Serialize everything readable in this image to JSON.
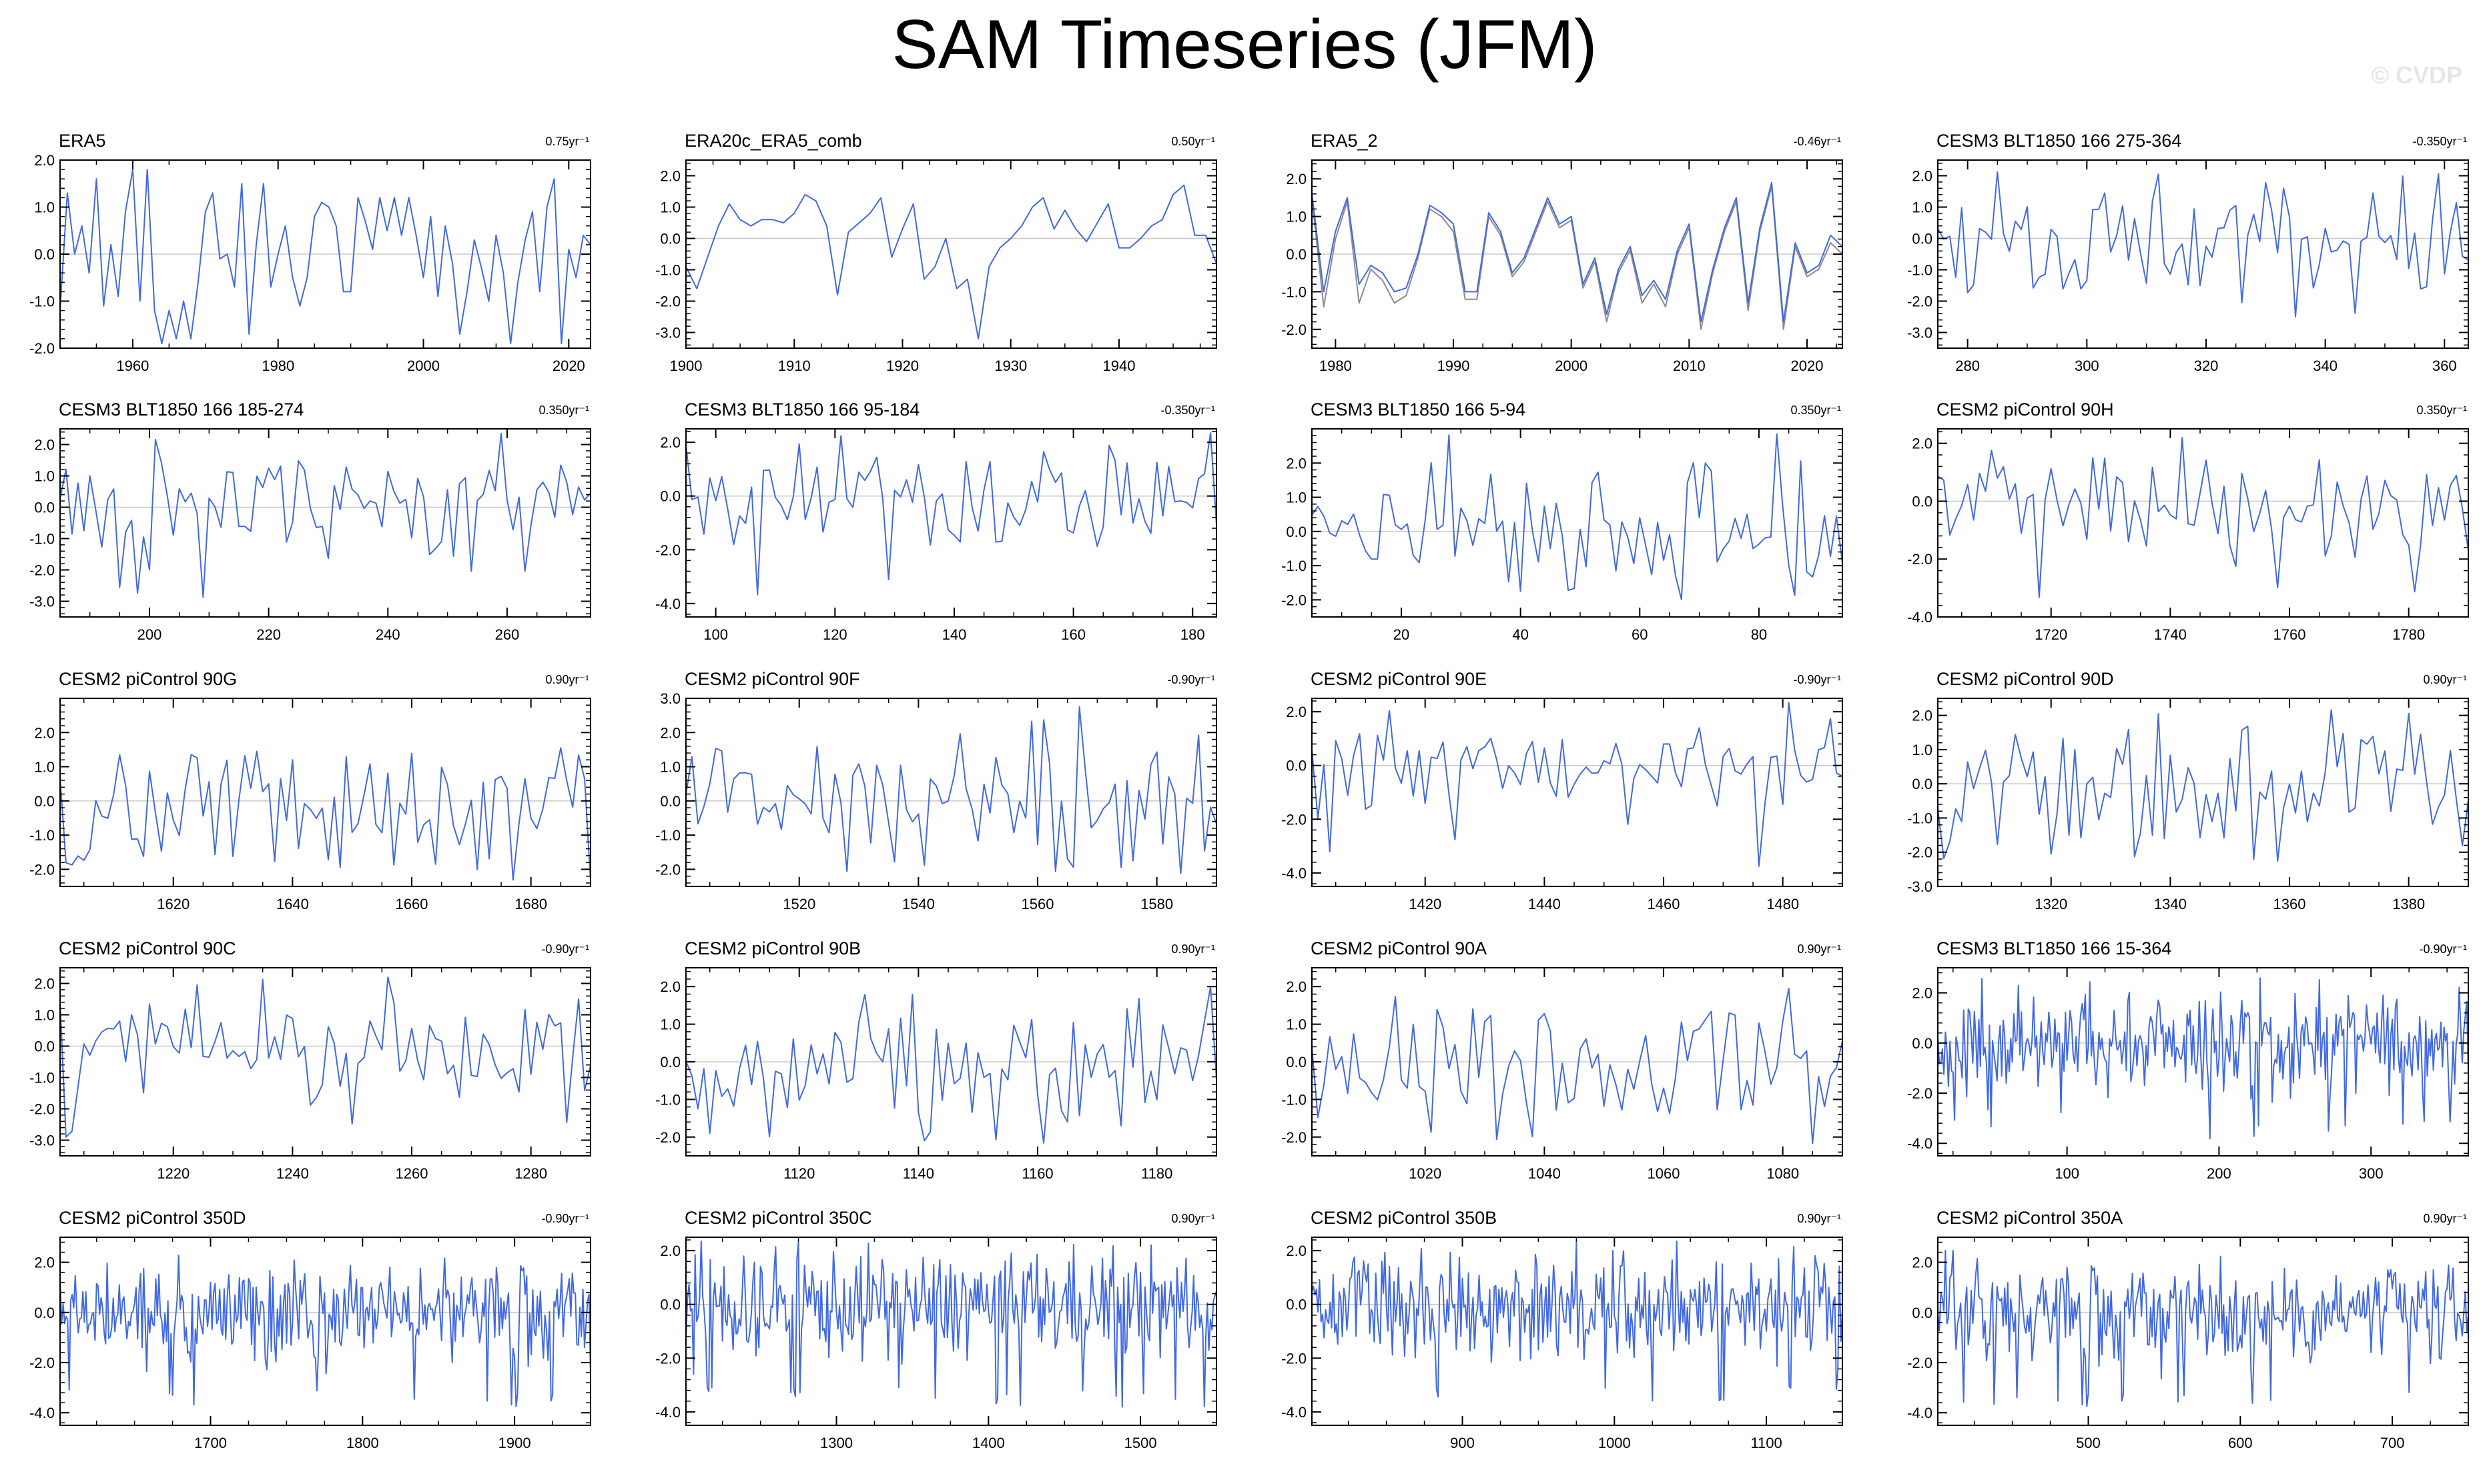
{
  "title": "SAM Timeseries (JFM)",
  "watermark": "© CVDP",
  "colors": {
    "line": "#4169e1",
    "obs_line2": "#8c8c8c",
    "zero_line": "#c8c8c8",
    "axis": "#000000"
  },
  "chart_data": [
    {
      "type": "line",
      "title": "ERA5",
      "trend": "0.75yr⁻¹",
      "xlim": [
        1950,
        2023
      ],
      "ylim": [
        -2,
        2
      ],
      "xticks": [
        1960,
        1980,
        2000,
        2020
      ],
      "yticks": [
        -2,
        -1,
        0,
        1,
        2
      ],
      "x": [
        1950,
        1951,
        1952,
        1953,
        1954,
        1955,
        1956,
        1957,
        1958,
        1959,
        1960,
        1961,
        1962,
        1963,
        1964,
        1965,
        1966,
        1967,
        1968,
        1969,
        1970,
        1971,
        1972,
        1973,
        1974,
        1975,
        1976,
        1977,
        1978,
        1979,
        1980,
        1981,
        1982,
        1983,
        1984,
        1985,
        1986,
        1987,
        1988,
        1989,
        1990,
        1991,
        1992,
        1993,
        1994,
        1995,
        1996,
        1997,
        1998,
        1999,
        2000,
        2001,
        2002,
        2003,
        2004,
        2005,
        2006,
        2007,
        2008,
        2009,
        2010,
        2011,
        2012,
        2013,
        2014,
        2015,
        2016,
        2017,
        2018,
        2019,
        2020,
        2021,
        2022,
        2023
      ],
      "series": [
        {
          "values": [
            -1.2,
            1.3,
            0.0,
            0.6,
            -0.4,
            1.6,
            -1.1,
            0.2,
            -0.9,
            0.9,
            1.8,
            -1.0,
            1.8,
            -1.2,
            -1.9,
            -1.2,
            -1.8,
            -1.0,
            -1.8,
            -0.6,
            0.9,
            1.3,
            -0.1,
            0.0,
            -0.7,
            1.5,
            -1.7,
            0.2,
            1.5,
            -0.7,
            0.0,
            0.6,
            -0.5,
            -1.1,
            -0.5,
            0.8,
            1.1,
            1.0,
            0.6,
            -0.8,
            -0.8,
            1.2,
            0.7,
            0.1,
            1.2,
            0.5,
            1.2,
            0.4,
            1.2,
            0.4,
            -0.5,
            0.8,
            -0.9,
            0.6,
            -0.2,
            -1.7,
            -0.8,
            0.3,
            -0.3,
            -1.0,
            0.4,
            -0.4,
            -1.9,
            -0.6,
            0.3,
            0.9,
            -0.8,
            1.0,
            1.6,
            -1.9,
            0.1,
            -0.5,
            0.4,
            0.2
          ]
        }
      ]
    },
    {
      "type": "line",
      "title": "ERA20c_ERA5_comb",
      "trend": "0.50yr⁻¹",
      "xlim": [
        1900,
        1949
      ],
      "ylim": [
        -3.5,
        2.5
      ],
      "xticks": [
        1900,
        1910,
        1920,
        1930,
        1940
      ],
      "yticks": [
        -3,
        -2,
        -1,
        0,
        1,
        2
      ],
      "x": [
        1900,
        1901,
        1902,
        1903,
        1904,
        1905,
        1906,
        1907,
        1908,
        1909,
        1910,
        1911,
        1912,
        1913,
        1914,
        1915,
        1916,
        1917,
        1918,
        1919,
        1920,
        1921,
        1922,
        1923,
        1924,
        1925,
        1926,
        1927,
        1928,
        1929,
        1930,
        1931,
        1932,
        1933,
        1934,
        1935,
        1936,
        1937,
        1938,
        1939,
        1940,
        1941,
        1942,
        1943,
        1944,
        1945,
        1946,
        1947,
        1948,
        1949
      ],
      "series": [
        {
          "values": [
            -0.9,
            -1.6,
            -0.6,
            0.4,
            1.1,
            0.6,
            0.4,
            0.6,
            0.6,
            0.5,
            0.8,
            1.4,
            1.2,
            0.4,
            -1.8,
            0.2,
            0.5,
            0.8,
            1.3,
            -0.6,
            0.3,
            1.1,
            -1.3,
            -0.9,
            0.0,
            -1.6,
            -1.3,
            -3.2,
            -0.9,
            -0.3,
            0.0,
            0.4,
            1.0,
            1.3,
            0.3,
            0.9,
            0.3,
            -0.1,
            0.5,
            1.1,
            -0.3,
            -0.3,
            0.0,
            0.4,
            0.6,
            1.4,
            1.7,
            0.1,
            0.1,
            -0.8
          ]
        }
      ]
    },
    {
      "type": "line",
      "title": "ERA5_2",
      "trend": "-0.46yr⁻¹",
      "xlim": [
        1978,
        2023
      ],
      "ylim": [
        -2.5,
        2.5
      ],
      "xticks": [
        1980,
        1990,
        2000,
        2010,
        2020
      ],
      "yticks": [
        -2,
        -1,
        0,
        1,
        2
      ],
      "x": [
        1978,
        1979,
        1980,
        1981,
        1982,
        1983,
        1984,
        1985,
        1986,
        1987,
        1988,
        1989,
        1990,
        1991,
        1992,
        1993,
        1994,
        1995,
        1996,
        1997,
        1998,
        1999,
        2000,
        2001,
        2002,
        2003,
        2004,
        2005,
        2006,
        2007,
        2008,
        2009,
        2010,
        2011,
        2012,
        2013,
        2014,
        2015,
        2016,
        2017,
        2018,
        2019,
        2020,
        2021,
        2022,
        2023
      ],
      "series": [
        {
          "values": [
            1.5,
            -1.4,
            0.4,
            1.4,
            -1.3,
            -0.4,
            -0.7,
            -1.3,
            -1.1,
            -0.1,
            1.2,
            1.0,
            0.6,
            -1.2,
            -1.2,
            1.0,
            0.5,
            -0.6,
            -0.2,
            0.6,
            1.4,
            0.7,
            0.9,
            -0.9,
            -0.2,
            -1.8,
            -0.5,
            0.1,
            -1.3,
            -0.8,
            -1.4,
            0.0,
            0.7,
            -2.0,
            -0.5,
            0.6,
            1.4,
            -1.5,
            0.6,
            1.8,
            -2.0,
            0.2,
            -0.6,
            -0.4,
            0.3,
            0.0
          ]
        },
        {
          "values": [
            1.6,
            -1.0,
            0.6,
            1.5,
            -0.8,
            -0.3,
            -0.5,
            -1.0,
            -0.9,
            0.0,
            1.3,
            1.1,
            0.8,
            -1.0,
            -1.0,
            1.1,
            0.6,
            -0.5,
            -0.1,
            0.7,
            1.5,
            0.8,
            1.0,
            -0.8,
            -0.1,
            -1.6,
            -0.4,
            0.2,
            -1.1,
            -0.7,
            -1.2,
            0.1,
            0.8,
            -1.8,
            -0.4,
            0.7,
            1.5,
            -1.3,
            0.7,
            1.9,
            -1.8,
            0.3,
            -0.5,
            -0.3,
            0.5,
            0.2
          ]
        }
      ]
    },
    {
      "type": "line",
      "title": "CESM3 BLT1850 166 275-364",
      "trend": "-0.350yr⁻¹",
      "xlim": [
        275,
        364
      ],
      "ylim": [
        -3.5,
        2.5
      ],
      "xticks": [
        280,
        300,
        320,
        340,
        360
      ],
      "yticks": [
        -3,
        -2,
        -1,
        0,
        1,
        2
      ],
      "seed": 4,
      "n": 90,
      "amp": 1.05
    },
    {
      "type": "line",
      "title": "CESM3 BLT1850 166 185-274",
      "trend": "0.350yr⁻¹",
      "xlim": [
        185,
        274
      ],
      "ylim": [
        -3.5,
        2.5
      ],
      "xticks": [
        200,
        220,
        240,
        260
      ],
      "yticks": [
        -3,
        -2,
        -1,
        0,
        1,
        2
      ],
      "seed": 5,
      "n": 90,
      "amp": 1.0
    },
    {
      "type": "line",
      "title": "CESM3 BLT1850 166 95-184",
      "trend": "-0.350yr⁻¹",
      "xlim": [
        95,
        184
      ],
      "ylim": [
        -4.5,
        2.5
      ],
      "xticks": [
        100,
        120,
        140,
        160,
        180
      ],
      "yticks": [
        -4,
        -2,
        0,
        2
      ],
      "seed": 6,
      "n": 90,
      "amp": 1.05
    },
    {
      "type": "line",
      "title": "CESM3 BLT1850 166 5-94",
      "trend": "0.350yr⁻¹",
      "xlim": [
        5,
        94
      ],
      "ylim": [
        -2.5,
        3.0
      ],
      "xticks": [
        20,
        40,
        60,
        80
      ],
      "yticks": [
        -2,
        -1,
        0,
        1,
        2
      ],
      "seed": 7,
      "n": 90,
      "amp": 1.0
    },
    {
      "type": "line",
      "title": "CESM2 piControl 90H",
      "trend": "0.350yr⁻¹",
      "xlim": [
        1701,
        1790
      ],
      "ylim": [
        -4,
        2.5
      ],
      "xticks": [
        1720,
        1740,
        1760,
        1780
      ],
      "yticks": [
        -4,
        -2,
        0,
        2
      ],
      "seed": 8,
      "n": 90,
      "amp": 1.0
    },
    {
      "type": "line",
      "title": "CESM2 piControl 90G",
      "trend": "0.90yr⁻¹",
      "xlim": [
        1601,
        1690
      ],
      "ylim": [
        -2.5,
        3.0
      ],
      "xticks": [
        1620,
        1640,
        1660,
        1680
      ],
      "yticks": [
        -2,
        -1,
        0,
        1,
        2
      ],
      "seed": 9,
      "n": 90,
      "amp": 1.0
    },
    {
      "type": "line",
      "title": "CESM2 piControl 90F",
      "trend": "-0.90yr⁻¹",
      "xlim": [
        1501,
        1590
      ],
      "ylim": [
        -2.5,
        3.0
      ],
      "xticks": [
        1520,
        1540,
        1560,
        1580
      ],
      "yticks": [
        -2,
        -1,
        0,
        1,
        2,
        3
      ],
      "seed": 10,
      "n": 90,
      "amp": 1.0
    },
    {
      "type": "line",
      "title": "CESM2 piControl 90E",
      "trend": "-0.90yr⁻¹",
      "xlim": [
        1401,
        1490
      ],
      "ylim": [
        -4.5,
        2.5
      ],
      "xticks": [
        1420,
        1440,
        1460,
        1480
      ],
      "yticks": [
        -4,
        -2,
        0,
        2
      ],
      "seed": 11,
      "n": 90,
      "amp": 1.0
    },
    {
      "type": "line",
      "title": "CESM2 piControl 90D",
      "trend": "0.90yr⁻¹",
      "xlim": [
        1301,
        1390
      ],
      "ylim": [
        -3,
        2.5
      ],
      "xticks": [
        1320,
        1340,
        1360,
        1380
      ],
      "yticks": [
        -3,
        -2,
        -1,
        0,
        1,
        2
      ],
      "seed": 12,
      "n": 90,
      "amp": 1.0
    },
    {
      "type": "line",
      "title": "CESM2 piControl 90C",
      "trend": "-0.90yr⁻¹",
      "xlim": [
        1201,
        1290
      ],
      "ylim": [
        -3.5,
        2.5
      ],
      "xticks": [
        1220,
        1240,
        1260,
        1280
      ],
      "yticks": [
        -3,
        -2,
        -1,
        0,
        1,
        2
      ],
      "seed": 13,
      "n": 90,
      "amp": 1.05
    },
    {
      "type": "line",
      "title": "CESM2 piControl 90B",
      "trend": "0.90yr⁻¹",
      "xlim": [
        1101,
        1190
      ],
      "ylim": [
        -2.5,
        2.5
      ],
      "xticks": [
        1120,
        1140,
        1160,
        1180
      ],
      "yticks": [
        -2,
        -1,
        0,
        1,
        2
      ],
      "seed": 14,
      "n": 90,
      "amp": 1.0
    },
    {
      "type": "line",
      "title": "CESM2 piControl 90A",
      "trend": "0.90yr⁻¹",
      "xlim": [
        1001,
        1090
      ],
      "ylim": [
        -2.5,
        2.5
      ],
      "xticks": [
        1020,
        1040,
        1060,
        1080
      ],
      "yticks": [
        -2,
        -1,
        0,
        1,
        2
      ],
      "seed": 15,
      "n": 90,
      "amp": 1.0
    },
    {
      "type": "line",
      "title": "CESM3 BLT1850 166 15-364",
      "trend": "-0.90yr⁻¹",
      "xlim": [
        15,
        364
      ],
      "ylim": [
        -4.5,
        3.0
      ],
      "xticks": [
        100,
        200,
        300
      ],
      "yticks": [
        -4,
        -2,
        0,
        2
      ],
      "seed": 16,
      "n": 350,
      "amp": 1.0
    },
    {
      "type": "line",
      "title": "CESM2 piControl 350D",
      "trend": "-0.90yr⁻¹",
      "xlim": [
        1601,
        1950
      ],
      "ylim": [
        -4.5,
        3.0
      ],
      "xticks": [
        1700,
        1800,
        1900
      ],
      "yticks": [
        -4,
        -2,
        0,
        2
      ],
      "seed": 17,
      "n": 350,
      "amp": 1.0
    },
    {
      "type": "line",
      "title": "CESM2 piControl 350C",
      "trend": "0.90yr⁻¹",
      "xlim": [
        1201,
        1550
      ],
      "ylim": [
        -4.5,
        2.5
      ],
      "xticks": [
        1300,
        1400,
        1500
      ],
      "yticks": [
        -4,
        -2,
        0,
        2
      ],
      "seed": 18,
      "n": 350,
      "amp": 1.0
    },
    {
      "type": "line",
      "title": "CESM2 piControl 350B",
      "trend": "0.90yr⁻¹",
      "xlim": [
        801,
        1150
      ],
      "ylim": [
        -4.5,
        2.5
      ],
      "xticks": [
        900,
        1000,
        1100
      ],
      "yticks": [
        -4,
        -2,
        0,
        2
      ],
      "seed": 19,
      "n": 350,
      "amp": 1.0
    },
    {
      "type": "line",
      "title": "CESM2 piControl 350A",
      "trend": "0.90yr⁻¹",
      "xlim": [
        401,
        750
      ],
      "ylim": [
        -4.5,
        3.0
      ],
      "xticks": [
        500,
        600,
        700
      ],
      "yticks": [
        -4,
        -2,
        0,
        2
      ],
      "seed": 20,
      "n": 350,
      "amp": 1.0
    }
  ]
}
